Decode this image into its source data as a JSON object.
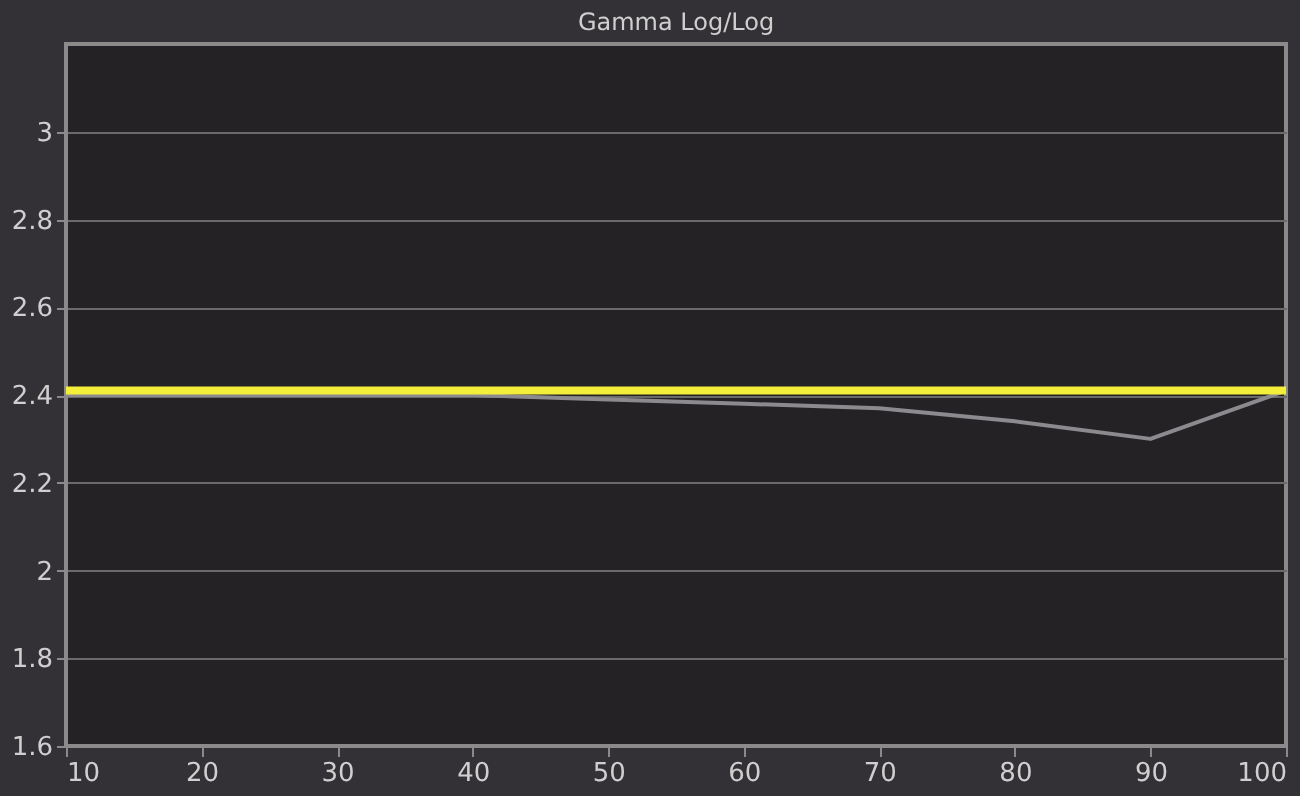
{
  "chart_data": {
    "type": "line",
    "title": "Gamma Log/Log",
    "x": [
      10,
      20,
      30,
      40,
      50,
      60,
      70,
      80,
      90,
      100
    ],
    "series": [
      {
        "color": "#8c8a8e",
        "values": [
          2.4,
          2.4,
          2.4,
          2.4,
          2.39,
          2.38,
          2.37,
          2.34,
          2.3,
          2.41
        ]
      }
    ],
    "ref_lines": [
      {
        "axis": "y",
        "value": 2.41,
        "color": "#f2ee3a"
      }
    ],
    "xlim": [
      10,
      100
    ],
    "xticks": [
      10,
      20,
      30,
      40,
      50,
      60,
      70,
      80,
      90,
      100
    ],
    "ylim": [
      1.6,
      3.2
    ],
    "yticks": [
      1.6,
      1.8,
      2,
      2.2,
      2.4,
      2.6,
      2.8,
      3
    ],
    "grid": "y",
    "marker": "none",
    "line_style": "solid"
  }
}
